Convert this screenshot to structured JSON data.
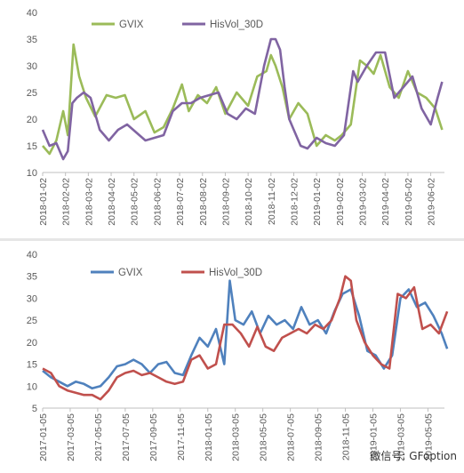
{
  "charts": [
    {
      "type": "line",
      "ylim": [
        10,
        40
      ],
      "yticks": [
        "10",
        "15",
        "20",
        "25",
        "30",
        "35",
        "40"
      ],
      "x_tick_labels": [
        "2018-01-02",
        "2018-02-02",
        "2018-03-02",
        "2018-04-02",
        "2018-05-02",
        "2018-06-02",
        "2018-07-02",
        "2018-08-02",
        "2018-09-02",
        "2018-10-02",
        "2018-11-02",
        "2018-12-02",
        "2019-01-02",
        "2019-02-02",
        "2019-03-02",
        "2019-04-02",
        "2019-05-02",
        "2019-06-02"
      ],
      "legend": [
        {
          "name": "GVIX",
          "color": "#9BBB59"
        },
        {
          "name": "HisVol_30D",
          "color": "#8064A2"
        }
      ],
      "legend_position": "top-left",
      "grid": false
    },
    {
      "type": "line",
      "ylim": [
        5,
        40
      ],
      "yticks": [
        "5",
        "10",
        "15",
        "20",
        "25",
        "30",
        "35",
        "40"
      ],
      "x_tick_labels": [
        "2017-01-05",
        "2017-03-05",
        "2017-05-05",
        "2017-07-05",
        "2017-09-05",
        "2017-11-05",
        "2018-01-05",
        "2018-03-05",
        "2018-05-05",
        "2018-07-05",
        "2018-09-05",
        "2018-11-05",
        "2019-01-05",
        "2019-03-05",
        "2019-05-05"
      ],
      "legend": [
        {
          "name": "GVIX",
          "color": "#4F81BD"
        },
        {
          "name": "HisVol_30D",
          "color": "#C0504D"
        }
      ],
      "legend_position": "top-center",
      "grid": false
    }
  ],
  "chart_data": [
    {
      "type": "line",
      "x_tick_labels": [
        "2018-01-02",
        "2018-02-02",
        "2018-03-02",
        "2018-04-02",
        "2018-05-02",
        "2018-06-02",
        "2018-07-02",
        "2018-08-02",
        "2018-09-02",
        "2018-10-02",
        "2018-11-02",
        "2018-12-02",
        "2019-01-02",
        "2019-02-02",
        "2019-03-02",
        "2019-04-02",
        "2019-05-02",
        "2019-06-02"
      ],
      "ylim": [
        10,
        40
      ],
      "series": [
        {
          "name": "GVIX",
          "color": "#9BBB59",
          "x": [
            0,
            0.3,
            0.6,
            0.9,
            1.1,
            1.35,
            1.6,
            1.75,
            1.9,
            2.3,
            2.8,
            3.2,
            3.6,
            4.0,
            4.5,
            4.9,
            5.3,
            5.7,
            6.1,
            6.4,
            6.8,
            7.2,
            7.6,
            8.0,
            8.5,
            9.0,
            9.4,
            9.8,
            10.0,
            10.2,
            10.5,
            10.8,
            11.2,
            11.6,
            12.0,
            12.4,
            12.8,
            13.1,
            13.5,
            13.9,
            14.2,
            14.5,
            14.8,
            15.2,
            15.6,
            16.0,
            16.4,
            16.8,
            17.2,
            17.5
          ],
          "y": [
            15,
            13.5,
            16,
            21.5,
            17,
            34,
            28,
            26,
            24,
            20.5,
            24.5,
            24,
            24.5,
            20,
            21.5,
            17.5,
            18.5,
            22,
            26.5,
            21.5,
            24.5,
            23,
            26,
            21,
            25,
            22.5,
            28,
            29,
            32,
            30,
            26,
            20,
            23,
            21,
            15,
            17,
            16,
            17,
            19,
            31,
            30,
            28.5,
            32,
            26,
            24,
            29,
            25,
            24,
            22,
            18
          ]
        },
        {
          "name": "HisVol_30D",
          "color": "#8064A2",
          "x": [
            0,
            0.3,
            0.6,
            0.9,
            1.1,
            1.3,
            1.5,
            1.8,
            2.1,
            2.5,
            2.9,
            3.3,
            3.7,
            4.1,
            4.5,
            4.9,
            5.3,
            5.7,
            6.1,
            6.5,
            6.9,
            7.3,
            7.7,
            8.1,
            8.5,
            8.9,
            9.3,
            9.7,
            10.0,
            10.2,
            10.4,
            10.6,
            10.8,
            11.0,
            11.3,
            11.6,
            12.0,
            12.4,
            12.8,
            13.2,
            13.6,
            13.8,
            14.2,
            14.6,
            15.0,
            15.4,
            15.8,
            16.2,
            16.6,
            17.0,
            17.3,
            17.5
          ],
          "y": [
            18,
            15,
            15.5,
            12.5,
            14,
            23,
            24,
            25,
            24,
            18,
            16,
            18,
            19,
            17.5,
            16,
            16.5,
            17,
            21.5,
            23,
            23,
            24,
            24.5,
            25,
            21,
            20,
            22,
            21,
            30,
            35,
            35,
            33,
            26,
            20,
            18,
            15,
            14.5,
            16.5,
            15.5,
            15,
            17,
            29,
            27,
            30,
            32.5,
            32.5,
            24,
            26,
            28,
            22,
            19,
            24,
            27
          ]
        }
      ]
    },
    {
      "type": "line",
      "x_tick_labels": [
        "2017-01-05",
        "2017-03-05",
        "2017-05-05",
        "2017-07-05",
        "2017-09-05",
        "2017-11-05",
        "2018-01-05",
        "2018-03-05",
        "2018-05-05",
        "2018-07-05",
        "2018-09-05",
        "2018-11-05",
        "2019-01-05",
        "2019-03-05",
        "2019-05-05"
      ],
      "ylim": [
        5,
        40
      ],
      "series": [
        {
          "name": "GVIX",
          "color": "#4F81BD",
          "x": [
            0,
            0.3,
            0.6,
            0.9,
            1.2,
            1.5,
            1.8,
            2.1,
            2.4,
            2.7,
            3.0,
            3.3,
            3.6,
            3.9,
            4.2,
            4.5,
            4.8,
            5.1,
            5.4,
            5.7,
            6.0,
            6.3,
            6.6,
            6.8,
            7.0,
            7.3,
            7.6,
            7.9,
            8.2,
            8.5,
            8.8,
            9.1,
            9.4,
            9.7,
            10.0,
            10.3,
            10.6,
            10.9,
            11.2,
            11.5,
            11.8,
            12.1,
            12.4,
            12.7,
            13.0,
            13.3,
            13.6,
            13.9,
            14.2,
            14.5,
            14.7
          ],
          "y": [
            13.5,
            12,
            11,
            10,
            11,
            10.5,
            9.5,
            10,
            12,
            14.5,
            15,
            16,
            15,
            13,
            15,
            15.5,
            13,
            12.5,
            17,
            21,
            19,
            23,
            15,
            34,
            25,
            24,
            27,
            22,
            26,
            24,
            25,
            23,
            28,
            24,
            25,
            22,
            27,
            31,
            32,
            26,
            18,
            17,
            14,
            17,
            30,
            32,
            28,
            29,
            26,
            22,
            18.5
          ]
        },
        {
          "name": "HisVol_30D",
          "color": "#C0504D",
          "x": [
            0,
            0.3,
            0.6,
            0.9,
            1.2,
            1.5,
            1.8,
            2.1,
            2.4,
            2.7,
            3.0,
            3.3,
            3.6,
            3.9,
            4.2,
            4.5,
            4.8,
            5.1,
            5.4,
            5.7,
            6.0,
            6.3,
            6.6,
            6.9,
            7.2,
            7.5,
            7.8,
            8.1,
            8.4,
            8.7,
            9.0,
            9.3,
            9.6,
            9.9,
            10.2,
            10.5,
            10.8,
            11.0,
            11.2,
            11.4,
            11.7,
            12.0,
            12.3,
            12.6,
            12.9,
            13.2,
            13.5,
            13.8,
            14.1,
            14.4,
            14.7
          ],
          "y": [
            14,
            13,
            10,
            9,
            8.5,
            8,
            8,
            7,
            9,
            12,
            13,
            13.5,
            12.5,
            13,
            12,
            11,
            10.5,
            11,
            16,
            17,
            14,
            15,
            24,
            24,
            22,
            19,
            23.5,
            19,
            18,
            21,
            22,
            23,
            22,
            24,
            23,
            25,
            30,
            35,
            34,
            25,
            20,
            17,
            15,
            14,
            31,
            30,
            32.5,
            23,
            24,
            22,
            27
          ]
        }
      ]
    }
  ],
  "watermark": {
    "text": "微信号: GFoption"
  }
}
